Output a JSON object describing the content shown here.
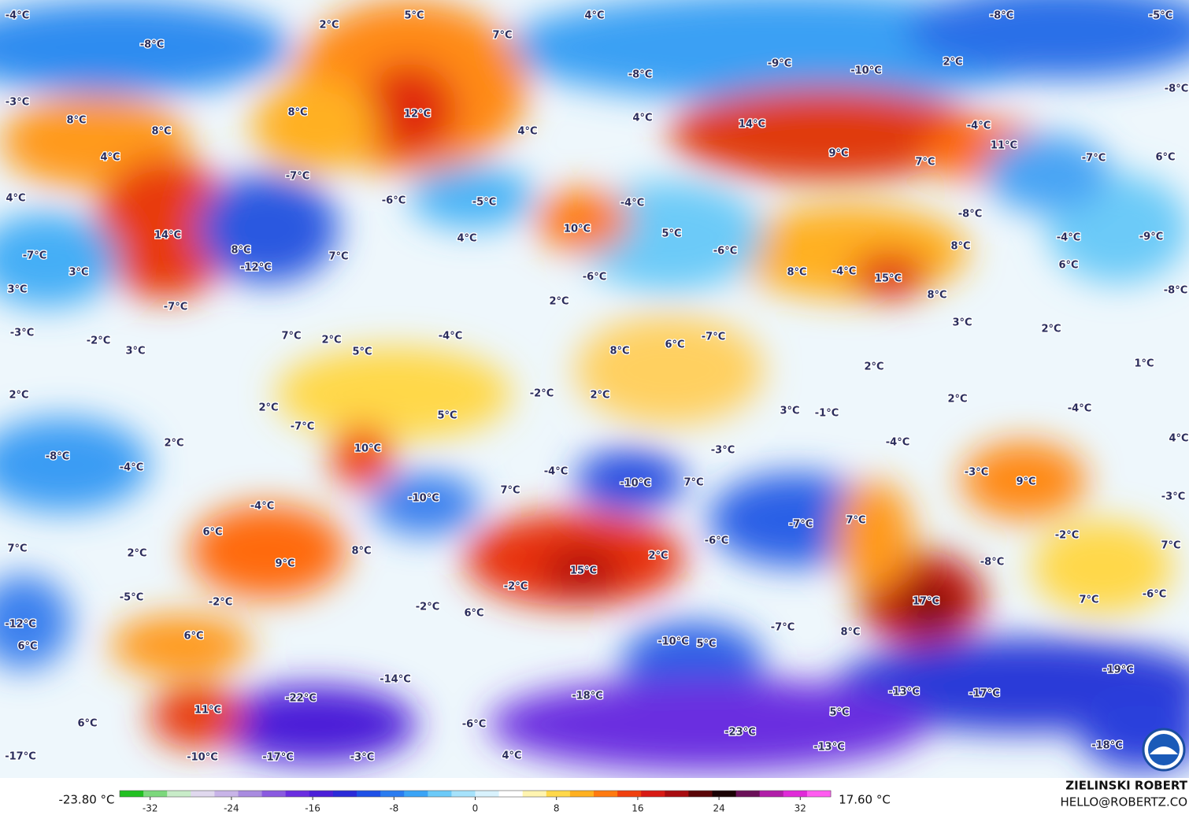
{
  "labels": [
    "-4°C",
    "5°C",
    "4°C",
    "-8°C",
    "-5°C",
    "2°C",
    "7°C",
    "-8°C",
    "-9°C",
    "-10°C",
    "-8°C",
    "2°C",
    "-8°C",
    "-3°C",
    "8°C",
    "12°C",
    "8°C",
    "4°C",
    "14°C",
    "8°C",
    "4°C",
    "-4°C",
    "11°C",
    "9°C",
    "4°C",
    "7°C",
    "-7°C",
    "6°C",
    "-7°C",
    "4°C",
    "-6°C",
    "-5°C",
    "-4°C",
    "-8°C",
    "14°C",
    "10°C",
    "5°C",
    "4°C",
    "8°C",
    "-4°C",
    "-9°C",
    "7°C",
    "-7°C",
    "-12°C",
    "8°C",
    "-6°C",
    "6°C",
    "3°C",
    "8°C",
    "-4°C",
    "15°C",
    "-6°C",
    "3°C",
    "-8°C",
    "8°C",
    "-7°C",
    "2°C",
    "-3°C",
    "3°C",
    "2°C",
    "7°C",
    "2°C",
    "-4°C",
    "-2°C",
    "3°C",
    "8°C",
    "6°C",
    "-7°C",
    "5°C",
    "1°C",
    "2°C",
    "-2°C",
    "2°C",
    "2°C",
    "2°C",
    "5°C",
    "3°C",
    "-1°C",
    "2°C",
    "-4°C",
    "-7°C",
    "2°C",
    "-4°C",
    "-3°C",
    "4°C",
    "10°C",
    "-8°C",
    "-4°C",
    "-4°C",
    "-10°C",
    "-3°C",
    "9°C",
    "7°C",
    "7°C",
    "-10°C",
    "-3°C",
    "-4°C",
    "-7°C",
    "7°C",
    "6°C",
    "-6°C",
    "-2°C",
    "7°C",
    "7°C",
    "8°C",
    "2°C",
    "2°C",
    "-8°C",
    "9°C",
    "15°C",
    "-2°C",
    "-6°C",
    "-5°C",
    "-2°C",
    "17°C",
    "7°C",
    "-2°C",
    "6°C",
    "-12°C",
    "-7°C",
    "8°C",
    "6°C",
    "-10°C",
    "5°C",
    "6°C",
    "-19°C",
    "-14°C",
    "-22°C",
    "-18°C",
    "-13°C",
    "-17°C",
    "11°C",
    "6°C",
    "-6°C",
    "5°C",
    "-23°C",
    "-18°C",
    "-13°C",
    "-17°C",
    "-10°C",
    "-17°C",
    "-3°C",
    "4°C"
  ],
  "colorbar": {
    "min_label": "-23.80 °C",
    "max_label": "17.60 °C",
    "lim": [
      -35,
      35
    ],
    "ticks": [
      -32,
      -24,
      -16,
      -8,
      0,
      8,
      16,
      24,
      32
    ],
    "colors": [
      "#22c022",
      "#7cd87c",
      "#c8ecc8",
      "#e0d8ee",
      "#c8b4e8",
      "#a98be0",
      "#8a5ae0",
      "#6a2ee0",
      "#4b1ed8",
      "#2a2ad8",
      "#1e50e6",
      "#2a7cf0",
      "#3aa4f6",
      "#6ccaf8",
      "#a6e2fb",
      "#d8f2fd",
      "#ffffff",
      "#fff4b0",
      "#ffd84a",
      "#ffb020",
      "#ff7a10",
      "#f0400e",
      "#d81a14",
      "#a80c10",
      "#5a0608",
      "#1a0204",
      "#6a1058",
      "#b01ea8",
      "#e02ad8",
      "#ff5cf0"
    ]
  },
  "credit": {
    "name": "ZIELINSKI ROBERT",
    "email": "HELLO@ROBERTZ.CO"
  }
}
